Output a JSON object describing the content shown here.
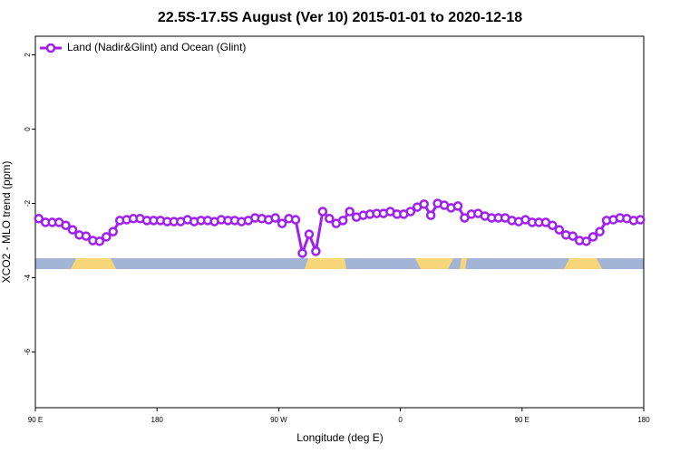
{
  "chart_data": {
    "type": "line",
    "title": "22.5S-17.5S August (Ver 10)   2015-01-01 to 2020-12-18",
    "xlabel": "Longitude (deg E)",
    "ylabel": "XCO2 - MLO trend (ppm)",
    "x": [
      92.5,
      97.5,
      102.5,
      107.5,
      112.5,
      117.5,
      122.5,
      127.5,
      132.5,
      137.5,
      142.5,
      147.5,
      152.5,
      157.5,
      162.5,
      167.5,
      172.5,
      177.5,
      182.5,
      187.5,
      192.5,
      197.5,
      202.5,
      207.5,
      212.5,
      217.5,
      222.5,
      227.5,
      232.5,
      237.5,
      242.5,
      247.5,
      252.5,
      257.5,
      262.5,
      267.5,
      272.5,
      277.5,
      282.5,
      287.5,
      292.5,
      297.5,
      302.5,
      307.5,
      312.5,
      317.5,
      322.5,
      327.5,
      332.5,
      337.5,
      342.5,
      347.5,
      352.5,
      357.5,
      362.5,
      367.5,
      372.5,
      377.5,
      382.5,
      387.5,
      392.5,
      397.5,
      402.5,
      407.5,
      412.5,
      417.5,
      422.5,
      427.5,
      432.5,
      437.5,
      442.5,
      447.5,
      452.5,
      457.5,
      462.5,
      467.5,
      472.5,
      477.5,
      482.5,
      487.5,
      492.5,
      497.5,
      502.5,
      507.5,
      512.5,
      517.5,
      522.5,
      527.5,
      532.5,
      537.5
    ],
    "series": [
      {
        "name": "Land (Nadir&Glint) and Ocean (Glint)",
        "color": "#a020f0",
        "values": [
          -2.41,
          -2.51,
          -2.51,
          -2.51,
          -2.59,
          -2.71,
          -2.85,
          -2.88,
          -3.0,
          -3.02,
          -2.9,
          -2.76,
          -2.46,
          -2.44,
          -2.41,
          -2.41,
          -2.46,
          -2.46,
          -2.46,
          -2.49,
          -2.49,
          -2.49,
          -2.44,
          -2.49,
          -2.46,
          -2.46,
          -2.49,
          -2.44,
          -2.46,
          -2.46,
          -2.49,
          -2.46,
          -2.39,
          -2.41,
          -2.44,
          -2.39,
          -2.54,
          -2.41,
          -2.44,
          -3.34,
          -2.83,
          -3.29,
          -2.22,
          -2.41,
          -2.54,
          -2.46,
          -2.22,
          -2.37,
          -2.32,
          -2.29,
          -2.27,
          -2.27,
          -2.22,
          -2.29,
          -2.29,
          -2.22,
          -2.1,
          -2.02,
          -2.32,
          -2.0,
          -2.05,
          -2.12,
          -2.07,
          -2.39,
          -2.29,
          -2.27,
          -2.34,
          -2.39,
          -2.39,
          -2.39,
          -2.46,
          -2.49,
          -2.44,
          -2.51,
          -2.51,
          -2.51,
          -2.59,
          -2.71,
          -2.85,
          -2.88,
          -3.0,
          -3.02,
          -2.9,
          -2.76,
          -2.46,
          -2.44,
          -2.39,
          -2.41,
          -2.46,
          -2.44
        ]
      }
    ],
    "xlim": [
      90,
      540
    ],
    "xticks": [
      {
        "value": 90,
        "label": "90 E"
      },
      180,
      {
        "value": 270,
        "label": "90 W"
      },
      {
        "value": 360,
        "label": "0"
      },
      {
        "value": 450,
        "label": "90 E"
      },
      {
        "value": 540,
        "label": "180"
      }
    ],
    "ylim": [
      -7.5,
      2.5
    ],
    "yticks": [
      2,
      0,
      -2,
      -4,
      -6
    ],
    "legend": "upper left"
  }
}
